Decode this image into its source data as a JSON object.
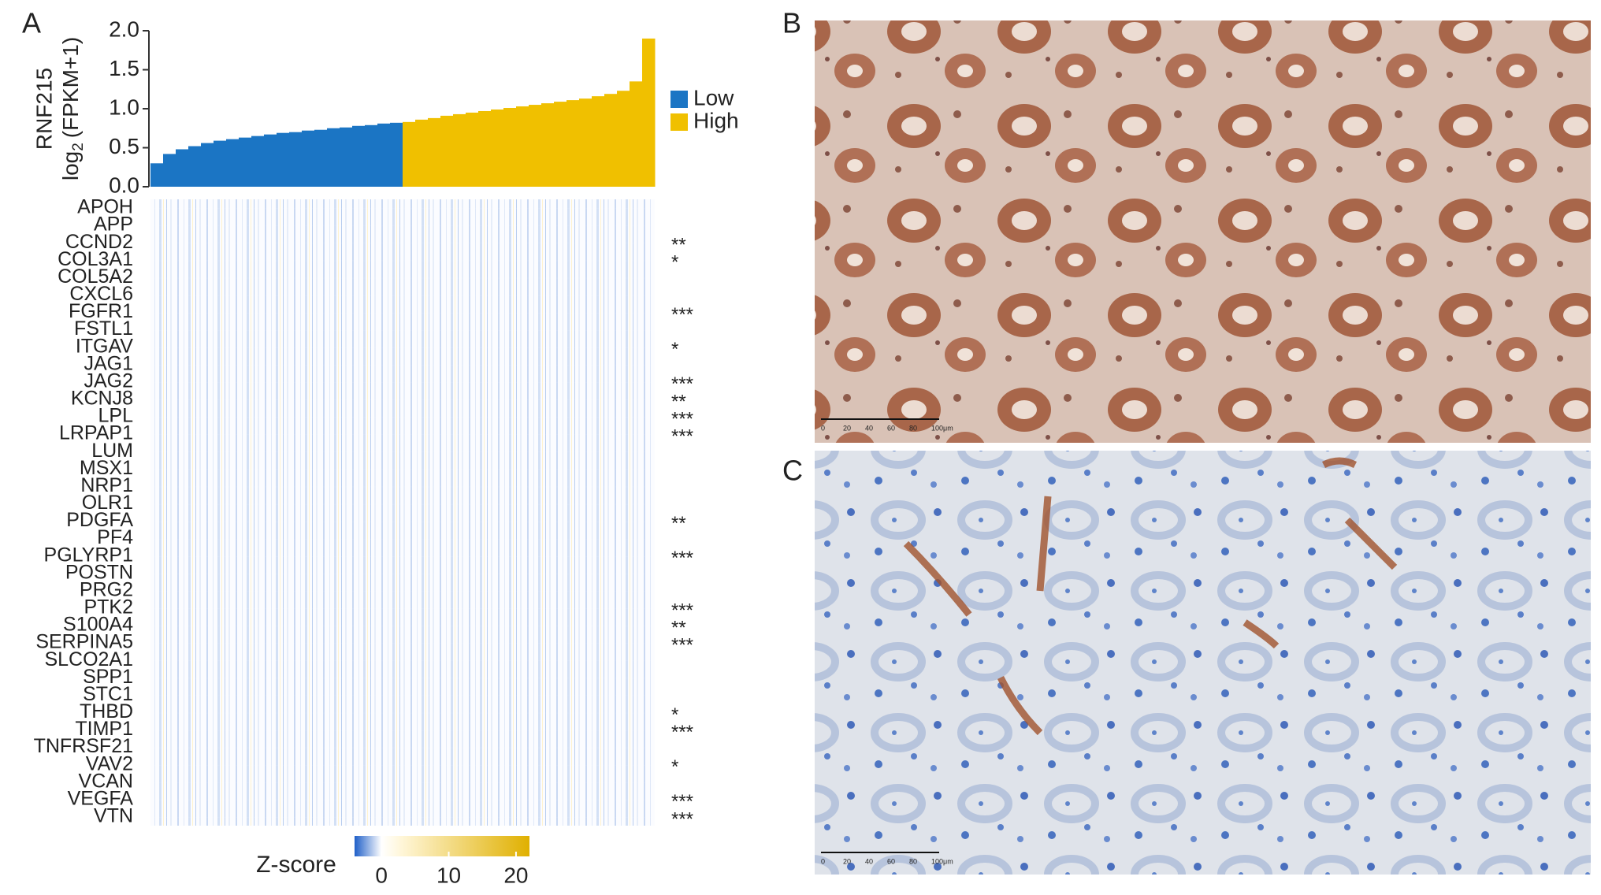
{
  "panels": [
    "A",
    "B",
    "C"
  ],
  "chart_data": {
    "type": "bar",
    "y_label": {
      "gene": "RNF215",
      "log": "log",
      "base": "2",
      "unit": "(FPKM+1)"
    },
    "categories": [
      null,
      null,
      null,
      null,
      null,
      null,
      null,
      null,
      null,
      null,
      null,
      null,
      null,
      null,
      null,
      null,
      null,
      null,
      null,
      null,
      null,
      null,
      null,
      null,
      null,
      null,
      null,
      null,
      null,
      null,
      null,
      null,
      null,
      null,
      null,
      null,
      null,
      null,
      null,
      null
    ],
    "series": [
      {
        "name": "Low",
        "color": "#1b75c4",
        "values": [
          0.3,
          0.42,
          0.48,
          0.52,
          0.56,
          0.59,
          0.61,
          0.63,
          0.65,
          0.67,
          0.69,
          0.7,
          0.72,
          0.73,
          0.75,
          0.76,
          0.78,
          0.79,
          0.81,
          0.82,
          null,
          null,
          null,
          null,
          null,
          null,
          null,
          null,
          null,
          null,
          null,
          null,
          null,
          null,
          null,
          null,
          null,
          null,
          null,
          null
        ]
      },
      {
        "name": "High",
        "color": "#f0c000",
        "values": [
          null,
          null,
          null,
          null,
          null,
          null,
          null,
          null,
          null,
          null,
          null,
          null,
          null,
          null,
          null,
          null,
          null,
          null,
          null,
          null,
          0.83,
          0.86,
          0.88,
          0.91,
          0.93,
          0.95,
          0.97,
          0.99,
          1.01,
          1.03,
          1.05,
          1.07,
          1.09,
          1.11,
          1.13,
          1.16,
          1.19,
          1.23,
          1.35,
          1.9
        ]
      }
    ],
    "ylim": [
      0,
      2.0
    ],
    "yticks": [
      {
        "value": 0,
        "label": "0.0"
      },
      {
        "value": 0.5,
        "label": "0.5"
      },
      {
        "value": 1.0,
        "label": "1.0"
      },
      {
        "value": 1.5,
        "label": "1.5"
      },
      {
        "value": 2.0,
        "label": "2.0"
      }
    ],
    "legend": "right"
  },
  "heatmap": {
    "genes": [
      "APOH",
      "APP",
      "CCND2",
      "COL3A1",
      "COL5A2",
      "CXCL6",
      "FGFR1",
      "FSTL1",
      "ITGAV",
      "JAG1",
      "JAG2",
      "KCNJ8",
      "LPL",
      "LRPAP1",
      "LUM",
      "MSX1",
      "NRP1",
      "OLR1",
      "PDGFA",
      "PF4",
      "PGLYRP1",
      "POSTN",
      "PRG2",
      "PTK2",
      "S100A4",
      "SERPINA5",
      "SLCO2A1",
      "SPP1",
      "STC1",
      "THBD",
      "TIMP1",
      "TNFRSF21",
      "VAV2",
      "VCAN",
      "VEGFA",
      "VTN"
    ],
    "significance": [
      null,
      null,
      "**",
      "*",
      null,
      null,
      "***",
      null,
      "*",
      null,
      "***",
      "**",
      "***",
      "***",
      null,
      null,
      null,
      null,
      "**",
      null,
      "***",
      null,
      null,
      "***",
      "**",
      "***",
      null,
      null,
      null,
      "*",
      "***",
      null,
      "*",
      null,
      "***",
      "***"
    ],
    "colorbar": {
      "label": "Z-score",
      "lim": [
        -4,
        22
      ],
      "ticks": [
        0,
        10,
        20
      ],
      "stops": [
        -4,
        0,
        3,
        22
      ],
      "colors": [
        "#1f5fc8",
        "#ffffff",
        "#fff6d8",
        "#e0b000"
      ]
    }
  },
  "micrographs": {
    "B": {
      "scale_bar": [
        "0",
        "20",
        "40",
        "60",
        "80",
        "100μm"
      ]
    },
    "C": {
      "scale_bar": [
        "0",
        "20",
        "40",
        "60",
        "80",
        "100μm"
      ]
    }
  }
}
